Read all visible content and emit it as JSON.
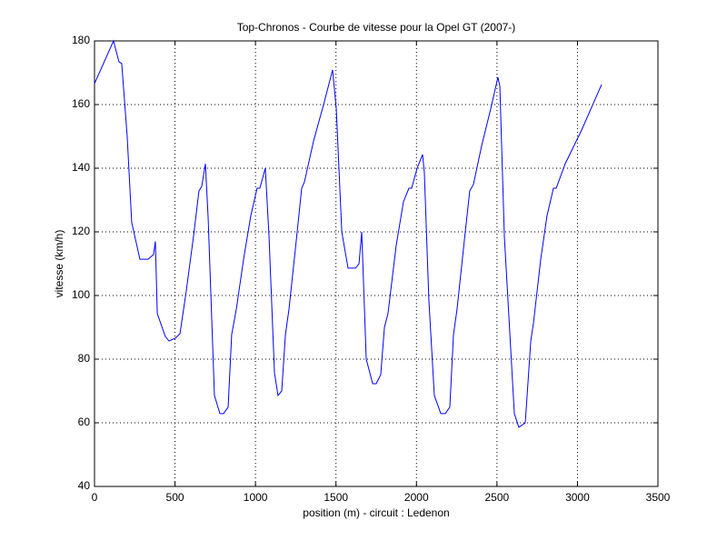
{
  "chart_data": {
    "type": "line",
    "title": "Top-Chronos - Courbe de vitesse pour la Opel GT (2007-)",
    "xlabel": "position (m) - circuit : Ledenon",
    "ylabel": "vitesse (km/h)",
    "x": [
      0,
      118,
      152,
      169,
      203,
      231,
      282,
      333,
      367,
      378,
      390,
      440,
      463,
      502,
      531,
      570,
      615,
      649,
      666,
      689,
      706,
      745,
      779,
      802,
      830,
      852,
      881,
      926,
      971,
      1010,
      1027,
      1061,
      1084,
      1118,
      1140,
      1163,
      1186,
      1208,
      1253,
      1287,
      1304,
      1361,
      1423,
      1479,
      1502,
      1536,
      1575,
      1621,
      1643,
      1660,
      1688,
      1728,
      1750,
      1778,
      1801,
      1823,
      1874,
      1919,
      1953,
      1970,
      2004,
      2038,
      2049,
      2077,
      2111,
      2151,
      2179,
      2207,
      2230,
      2252,
      2297,
      2331,
      2354,
      2405,
      2461,
      2506,
      2518,
      2546,
      2608,
      2636,
      2676,
      2710,
      2727,
      2772,
      2811,
      2851,
      2868,
      2924,
      3026,
      3150
    ],
    "series": [
      {
        "name": "vitesse",
        "color": "#0000ff",
        "values": [
          166.6,
          180,
          173.4,
          172.9,
          150,
          123,
          111.4,
          111.4,
          112.9,
          117,
          94.3,
          87.1,
          85.7,
          86.6,
          88,
          101.4,
          118.6,
          132.9,
          134.3,
          141.4,
          124.3,
          68.6,
          62.9,
          62.9,
          64.9,
          87.7,
          95.7,
          111.4,
          125.1,
          133.7,
          133.7,
          140,
          118.6,
          75.7,
          68.6,
          70,
          87.7,
          95.7,
          117.1,
          133.7,
          135.7,
          148.6,
          160,
          170.9,
          158.6,
          120,
          108.6,
          108.6,
          110,
          120,
          80,
          72.3,
          72.3,
          75.1,
          90,
          94.3,
          115.7,
          129.4,
          133.7,
          133.7,
          140,
          144.3,
          138.6,
          98.6,
          68.6,
          62.9,
          62.9,
          64.9,
          87.7,
          95.7,
          117.1,
          132.9,
          134.9,
          147.1,
          158.6,
          168.6,
          165.7,
          118.6,
          62.9,
          58.6,
          60,
          85.7,
          91.4,
          111.4,
          125.1,
          133.7,
          133.7,
          141.4,
          152,
          166.3
        ]
      }
    ],
    "xlim": [
      0,
      3500
    ],
    "xticks": [
      0,
      500,
      1000,
      1500,
      2000,
      2500,
      3000,
      3500
    ],
    "ylim": [
      40,
      180
    ],
    "yticks": [
      40,
      60,
      80,
      100,
      120,
      140,
      160,
      180
    ],
    "grid": true
  }
}
